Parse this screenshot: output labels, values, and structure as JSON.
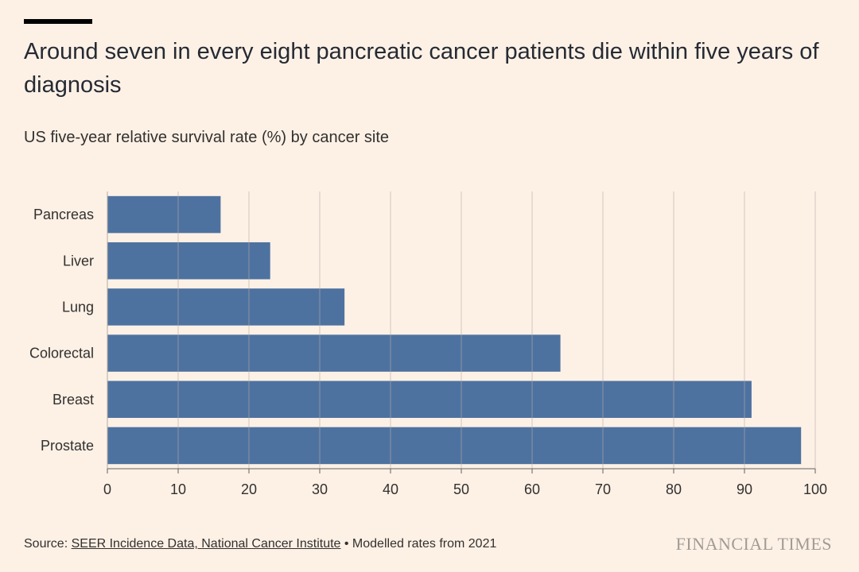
{
  "header": {
    "title": "Around seven in every eight pancreatic cancer patients die within five years of diagnosis",
    "subtitle": "US five-year relative survival rate (%) by cancer site"
  },
  "chart_data": {
    "type": "bar",
    "orientation": "horizontal",
    "categories": [
      "Pancreas",
      "Liver",
      "Lung",
      "Colorectal",
      "Breast",
      "Prostate"
    ],
    "values": [
      16,
      23,
      33.5,
      64,
      91,
      98
    ],
    "xlim": [
      0,
      100
    ],
    "xticks": [
      0,
      10,
      20,
      30,
      40,
      50,
      60,
      70,
      80,
      90,
      100
    ],
    "grid": true,
    "bar_color": "#4e72a0"
  },
  "footer": {
    "source_prefix": "Source: ",
    "source_link": "SEER Incidence Data, National Cancer Institute",
    "source_suffix": " • Modelled rates from 2021",
    "brand": "FINANCIAL TIMES"
  },
  "colors": {
    "background": "#fdf1e6",
    "bar": "#4e72a0",
    "grid": "#c9c1b8",
    "text": "#33302e"
  }
}
